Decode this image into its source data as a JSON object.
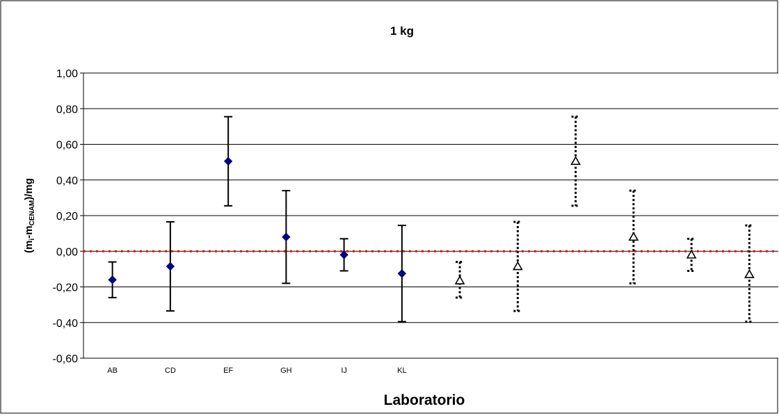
{
  "chart_data": {
    "type": "scatter",
    "title": "1 kg",
    "xlabel": "Laboratorio",
    "ylabel": {
      "prefix": "(m",
      "sub1": "i",
      "mid": "-m",
      "sub2": "CENAM",
      "suffix": ")/mg"
    },
    "ylim": [
      -0.6,
      1.0
    ],
    "yticks": [
      1.0,
      0.8,
      0.6,
      0.4,
      0.2,
      0.0,
      -0.2,
      -0.4,
      -0.6
    ],
    "ytick_labels": [
      "1,00",
      "0,80",
      "0,60",
      "0,40",
      "0,20",
      "0,00",
      "-0,20",
      "-0,40",
      "-0,60"
    ],
    "grid": true,
    "categories": [
      "AB",
      "CD",
      "EF",
      "GH",
      "IJ",
      "KL",
      "",
      "",
      "",
      "",
      "",
      ""
    ],
    "reference_line": {
      "y": 0.0,
      "color": "#ff0000",
      "style": "dotted"
    },
    "series": [
      {
        "marker": "diamond",
        "color": "#000080",
        "errorbar_style": "solid",
        "points": [
          {
            "x": 1,
            "y": -0.16,
            "err_low": -0.26,
            "err_high": -0.06
          },
          {
            "x": 2,
            "y": -0.085,
            "err_low": -0.335,
            "err_high": 0.165
          },
          {
            "x": 3,
            "y": 0.505,
            "err_low": 0.255,
            "err_high": 0.755
          },
          {
            "x": 4,
            "y": 0.08,
            "err_low": -0.18,
            "err_high": 0.34
          },
          {
            "x": 5,
            "y": -0.02,
            "err_low": -0.11,
            "err_high": 0.07
          },
          {
            "x": 6,
            "y": -0.125,
            "err_low": -0.395,
            "err_high": 0.145
          }
        ]
      },
      {
        "marker": "triangle",
        "color": "#000000",
        "errorbar_style": "dotted",
        "points": [
          {
            "x": 7,
            "y": -0.165,
            "err_low": -0.26,
            "err_high": -0.06
          },
          {
            "x": 8,
            "y": -0.085,
            "err_low": -0.335,
            "err_high": 0.165
          },
          {
            "x": 9,
            "y": 0.505,
            "err_low": 0.255,
            "err_high": 0.755
          },
          {
            "x": 10,
            "y": 0.08,
            "err_low": -0.18,
            "err_high": 0.34
          },
          {
            "x": 11,
            "y": -0.02,
            "err_low": -0.11,
            "err_high": 0.07
          },
          {
            "x": 12,
            "y": -0.13,
            "err_low": -0.395,
            "err_high": 0.145
          }
        ]
      }
    ]
  }
}
